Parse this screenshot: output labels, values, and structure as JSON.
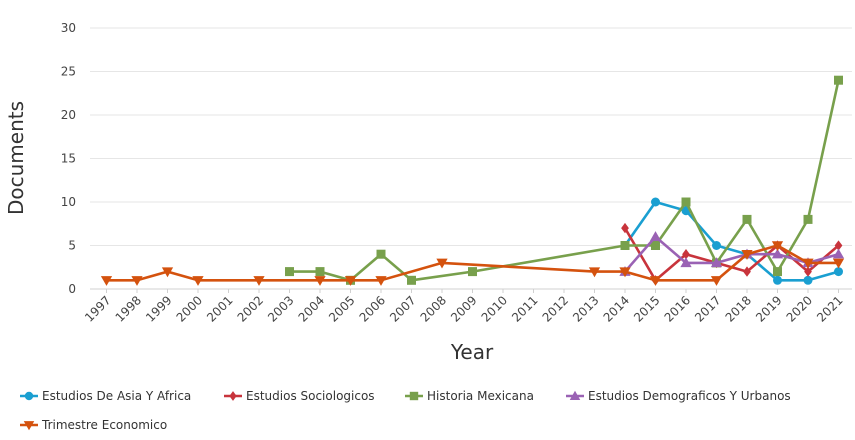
{
  "chart_data": {
    "type": "line",
    "xlabel": "Year",
    "ylabel": "Documents",
    "ylim": [
      0,
      30
    ],
    "yticks": [
      0,
      5,
      10,
      15,
      20,
      25,
      30
    ],
    "xticks": [
      "1997",
      "1998",
      "1999",
      "2000",
      "2001",
      "2002",
      "2003",
      "2004",
      "2005",
      "2006",
      "2007",
      "2008",
      "2009",
      "2010",
      "2011",
      "2012",
      "2013",
      "2014",
      "2015",
      "2016",
      "2017",
      "2018",
      "2019",
      "2020",
      "2021"
    ],
    "grid": "horizontal",
    "legend_position": "bottom",
    "series": [
      {
        "name": "Estudios De Asia Y Africa",
        "color": "#1a9fd1",
        "marker": "circle",
        "points": [
          [
            2014,
            5
          ],
          [
            2015,
            10
          ],
          [
            2016,
            9
          ],
          [
            2017,
            5
          ],
          [
            2018,
            4
          ],
          [
            2019,
            1
          ],
          [
            2020,
            1
          ],
          [
            2021,
            2
          ]
        ]
      },
      {
        "name": "Estudios Sociologicos",
        "color": "#c8343c",
        "marker": "diamond",
        "points": [
          [
            2014,
            7
          ],
          [
            2015,
            1
          ],
          [
            2016,
            4
          ],
          [
            2017,
            3
          ],
          [
            2018,
            2
          ],
          [
            2019,
            5
          ],
          [
            2020,
            2
          ],
          [
            2021,
            5
          ]
        ]
      },
      {
        "name": "Historia Mexicana",
        "color": "#78a04c",
        "marker": "square",
        "points": [
          [
            2003,
            2
          ],
          [
            2004,
            2
          ],
          [
            2005,
            1
          ],
          [
            2006,
            4
          ],
          [
            2007,
            1
          ],
          [
            2009,
            2
          ],
          [
            2014,
            5
          ],
          [
            2015,
            5
          ],
          [
            2016,
            10
          ],
          [
            2017,
            3
          ],
          [
            2018,
            8
          ],
          [
            2019,
            2
          ],
          [
            2020,
            8
          ],
          [
            2021,
            24
          ]
        ]
      },
      {
        "name": "Estudios Demograficos Y Urbanos",
        "color": "#9a62b4",
        "marker": "triangle-up",
        "points": [
          [
            2014,
            2
          ],
          [
            2015,
            6
          ],
          [
            2016,
            3
          ],
          [
            2017,
            3
          ],
          [
            2018,
            4
          ],
          [
            2019,
            4
          ],
          [
            2020,
            3
          ],
          [
            2021,
            4
          ]
        ]
      },
      {
        "name": "Trimestre Economico",
        "color": "#d4520e",
        "marker": "triangle-down",
        "points": [
          [
            1997,
            1
          ],
          [
            1998,
            1
          ],
          [
            1999,
            2
          ],
          [
            2000,
            1
          ],
          [
            2002,
            1
          ],
          [
            2004,
            1
          ],
          [
            2005,
            1
          ],
          [
            2006,
            1
          ],
          [
            2008,
            3
          ],
          [
            2013,
            2
          ],
          [
            2014,
            2
          ],
          [
            2015,
            1
          ],
          [
            2017,
            1
          ],
          [
            2018,
            4
          ],
          [
            2019,
            5
          ],
          [
            2020,
            3
          ],
          [
            2021,
            3
          ]
        ]
      }
    ]
  }
}
